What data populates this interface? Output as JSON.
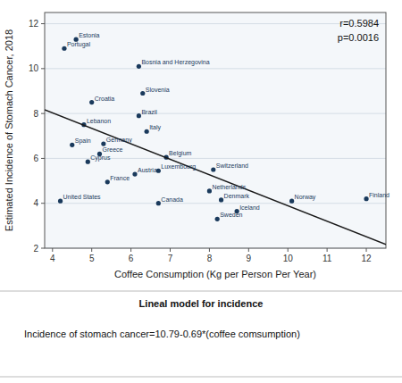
{
  "chart_data": {
    "type": "scatter",
    "xlabel": "Coffee Consumption (Kg per Person Per Year)",
    "ylabel": "Estimated Incidence of Stomach Cancer, 2018",
    "series": [
      {
        "type": "scatter",
        "color": "#1a3a5c",
        "x": [
          4.6,
          4.3,
          6.2,
          6.3,
          5.0,
          6.2,
          4.8,
          6.4,
          5.3,
          4.5,
          5.2,
          4.9,
          6.9,
          8.1,
          6.7,
          6.1,
          5.4,
          8.0,
          8.3,
          6.7,
          4.2,
          8.7,
          8.2,
          10.1,
          12.0
        ],
        "values": [
          11.3,
          10.9,
          10.1,
          8.9,
          8.5,
          7.9,
          7.5,
          7.2,
          6.65,
          6.6,
          6.2,
          5.85,
          6.05,
          5.5,
          5.45,
          5.3,
          4.95,
          4.55,
          4.15,
          4.0,
          4.1,
          3.65,
          3.3,
          4.1,
          4.2
        ],
        "labels": [
          "Estonia",
          "Portugal",
          "Bosnia and Herzegovina",
          "Slovenia",
          "Croatia",
          "Brazil",
          "Lebanon",
          "Italy",
          "Germany",
          "Spain",
          "Greece",
          "Cyprus",
          "Belgium",
          "Switzerland",
          "Luxembourg",
          "Austria",
          "France",
          "Netherlands",
          "Denmark",
          "Canada",
          "United States",
          "Iceland",
          "Sweden",
          "Norway",
          "Finland"
        ]
      },
      {
        "type": "line",
        "color": "#1a1a1a",
        "x": [
          3.8,
          12.5
        ],
        "values": [
          8.168,
          2.165
        ]
      }
    ],
    "annotations": [
      "r=0.5984",
      "p=0.0016"
    ],
    "caption": {
      "title": "Lineal model for incidence",
      "text": "Incidence of stomach cancer=10.79-0.69*(coffee comsumption)"
    },
    "xlim": [
      3.8,
      12.5
    ],
    "ylim": [
      2,
      12.5
    ],
    "xticks": [
      4,
      5,
      6,
      7,
      8,
      9,
      10,
      11,
      12
    ],
    "yticks": [
      2,
      4,
      6,
      8,
      10,
      12
    ],
    "grid": "y"
  }
}
